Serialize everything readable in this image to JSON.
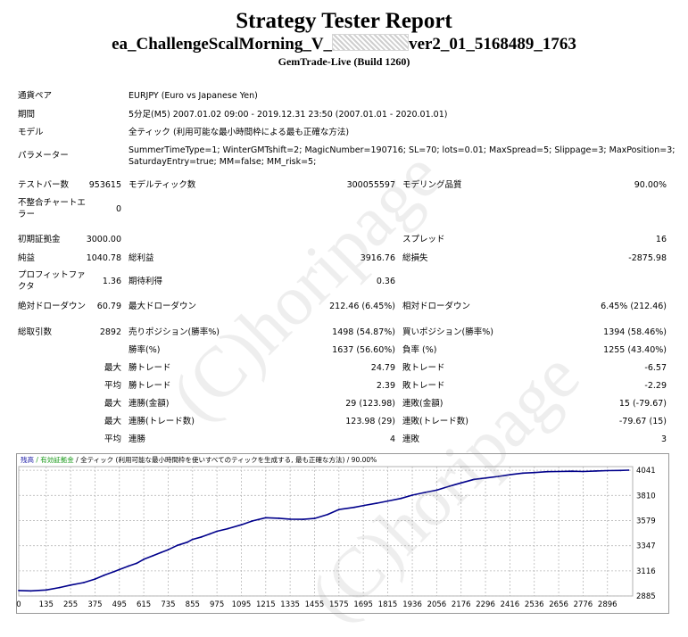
{
  "header": {
    "title": "Strategy Tester Report",
    "name_prefix": "ea_ChallengeScalMorning_V_",
    "name_suffix": "ver2_01_5168489_1763",
    "server": "GemTrade-Live (Build 1260)"
  },
  "info": {
    "symbol_label": "通貨ペア",
    "symbol_value": "EURJPY (Euro vs Japanese Yen)",
    "period_label": "期間",
    "period_value": "5分足(M5) 2007.01.02 09:00 - 2019.12.31 23:50 (2007.01.01 - 2020.01.01)",
    "model_label": "モデル",
    "model_value": "全ティック (利用可能な最小時間枠による最も正確な方法)",
    "params_label": "パラメーター",
    "params_line1": "SummerTimeType=1; WinterGMTshift=2; MagicNumber=190716; SL=70; lots=0.01; MaxSpread=5; Slippage=3; MaxPosition=3;",
    "params_line2": "SaturdayEntry=true; MM=false; MM_risk=5;"
  },
  "stats": {
    "bars_label": "テストバー数",
    "bars_value": "953615",
    "ticks_label": "モデルティック数",
    "ticks_value": "300055597",
    "quality_label": "モデリング品質",
    "quality_value": "90.00%",
    "mismatch_label_1": "不整合チャートエ",
    "mismatch_label_2": "ラー",
    "mismatch_value": "0",
    "deposit_label": "初期証拠金",
    "deposit_value": "3000.00",
    "spread_label": "スプレッド",
    "spread_value": "16",
    "net_label": "純益",
    "net_value": "1040.78",
    "gross_profit_label": "総利益",
    "gross_profit_value": "3916.76",
    "gross_loss_label": "総損失",
    "gross_loss_value": "-2875.98",
    "pf_label_1": "プロフィットファ",
    "pf_label_2": "クタ",
    "pf_value": "1.36",
    "payoff_label": "期待利得",
    "payoff_value": "0.36",
    "abs_dd_label": "絶対ドローダウン",
    "abs_dd_value": "60.79",
    "max_dd_label": "最大ドローダウン",
    "max_dd_value": "212.46 (6.45%)",
    "rel_dd_label": "相対ドローダウン",
    "rel_dd_value": "6.45% (212.46)",
    "trades_label": "総取引数",
    "trades_value": "2892",
    "short_label": "売りポジション(勝率%)",
    "short_value": "1498 (54.87%)",
    "long_label": "買いポジション(勝率%)",
    "long_value": "1394 (58.46%)",
    "win_label": "勝率(%)",
    "win_value": "1637 (56.60%)",
    "loss_label": "負率 (%)",
    "loss_value": "1255 (43.40%)",
    "largest": "最大",
    "average": "平均",
    "maximum": "最大",
    "maximal": "最大",
    "average2": "平均",
    "largest_win_label": "勝トレード",
    "largest_win_value": "24.79",
    "largest_loss_label": "敗トレード",
    "largest_loss_value": "-6.57",
    "avg_win_label": "勝トレード",
    "avg_win_value": "2.39",
    "avg_loss_label": "敗トレード",
    "avg_loss_value": "-2.29",
    "max_consec_win_label": "連勝(金額)",
    "max_consec_win_value": "29 (123.98)",
    "max_consec_loss_label": "連敗(金額)",
    "max_consec_loss_value": "15 (-79.67)",
    "maximal_consec_win_label": "連勝(トレード数)",
    "maximal_consec_win_value": "123.98 (29)",
    "maximal_consec_loss_label": "連敗(トレード数)",
    "maximal_consec_loss_value": "-79.67 (15)",
    "avg_consec_win_label": "連勝",
    "avg_consec_win_value": "4",
    "avg_consec_loss_label": "連敗",
    "avg_consec_loss_value": "3"
  },
  "watermark": "(C)horipage",
  "chart_data": {
    "type": "line",
    "legend": [
      "残高",
      "有効証拠金",
      "全ティック (利用可能な最小時間枠を使いすべてのティックを生成する, 最も正確な方法)",
      "90.00%"
    ],
    "legend_colors": [
      "#1a1aa6",
      "#1a9a1a",
      "#000000",
      "#000000"
    ],
    "line_color": "#00008b",
    "x_ticks": [
      0,
      135,
      255,
      375,
      495,
      615,
      735,
      855,
      975,
      1095,
      1215,
      1335,
      1455,
      1575,
      1695,
      1815,
      1936,
      2056,
      2176,
      2296,
      2416,
      2536,
      2656,
      2776,
      2896
    ],
    "y_ticks": [
      2885,
      3116,
      3347,
      3579,
      3810,
      4041
    ],
    "xlim": [
      0,
      3020
    ],
    "ylim": [
      2885,
      4075
    ],
    "series": [
      {
        "x": [
          0,
          60,
          135,
          200,
          255,
          320,
          375,
          420,
          470,
          495,
          540,
          580,
          615,
          660,
          700,
          735,
          780,
          830,
          855,
          900,
          940,
          975,
          1030,
          1095,
          1150,
          1215,
          1280,
          1335,
          1400,
          1455,
          1520,
          1575,
          1650,
          1700,
          1760,
          1815,
          1880,
          1936,
          2000,
          2056,
          2120,
          2176,
          2240,
          2296,
          2360,
          2416,
          2480,
          2536,
          2600,
          2656,
          2720,
          2776,
          2840,
          2896,
          2960,
          3000
        ],
        "y": [
          2935,
          2932,
          2940,
          2962,
          2985,
          3008,
          3040,
          3075,
          3110,
          3128,
          3160,
          3185,
          3222,
          3255,
          3285,
          3310,
          3350,
          3380,
          3405,
          3428,
          3455,
          3480,
          3505,
          3540,
          3575,
          3605,
          3600,
          3592,
          3590,
          3598,
          3635,
          3680,
          3700,
          3718,
          3738,
          3758,
          3782,
          3812,
          3838,
          3858,
          3895,
          3925,
          3958,
          3970,
          3985,
          4000,
          4015,
          4020,
          4028,
          4030,
          4032,
          4030,
          4035,
          4038,
          4040,
          4042
        ]
      }
    ]
  }
}
